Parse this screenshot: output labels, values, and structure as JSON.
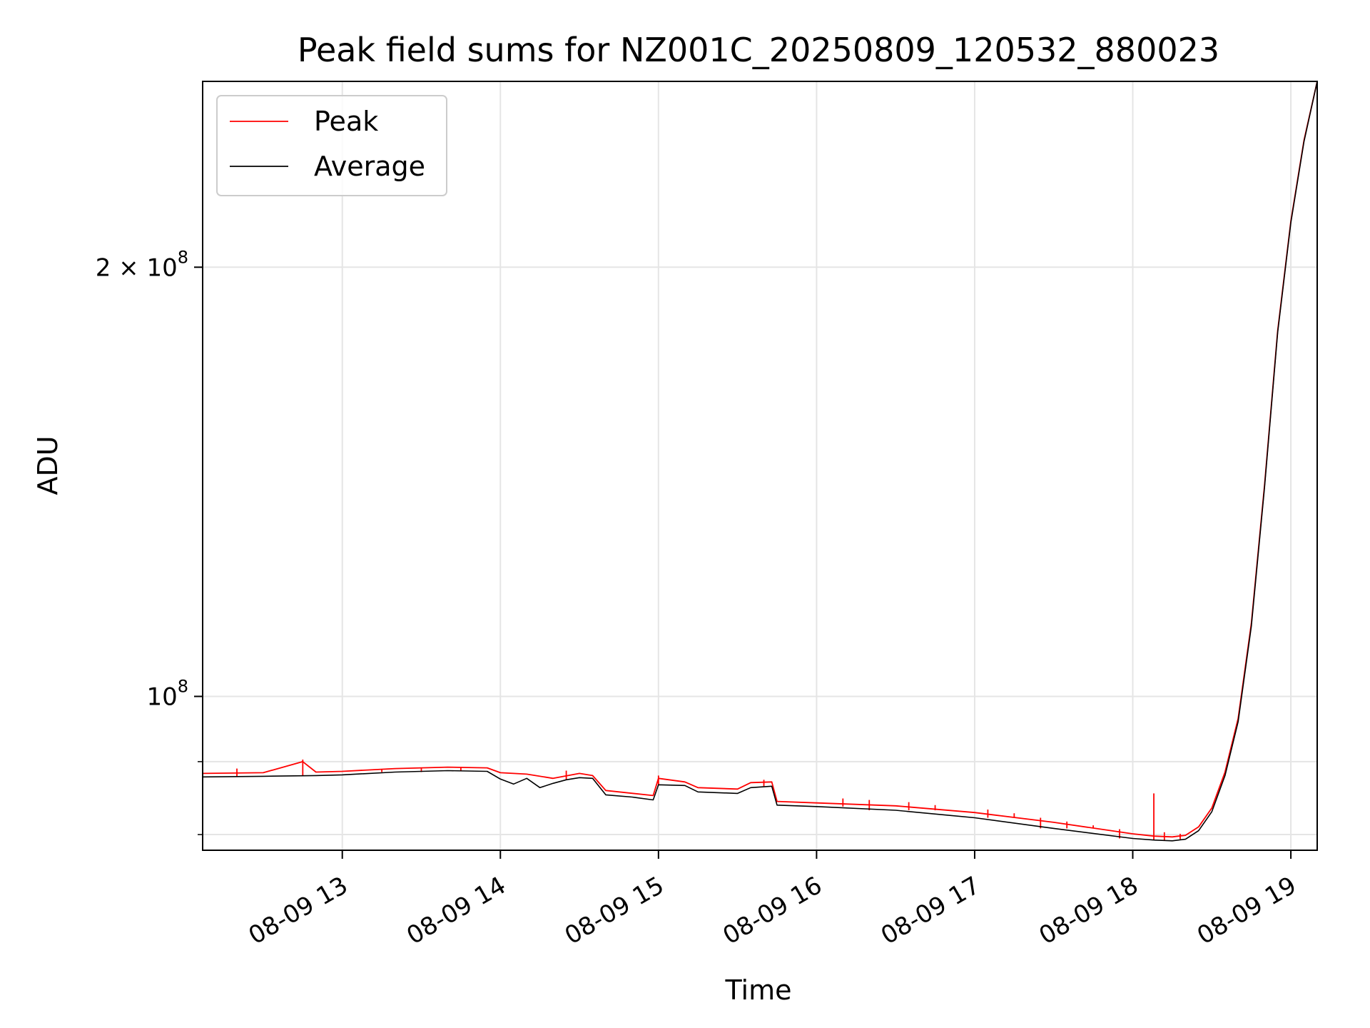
{
  "chart_data": {
    "type": "line",
    "title": "Peak field sums for NZ001C_20250809_120532_880023",
    "xlabel": "Time",
    "ylabel": "ADU",
    "x_range": [
      "08-09 12:07",
      "08-09 19:10"
    ],
    "y_range": [
      78000000,
      270000000
    ],
    "y_scale": "log",
    "grid": true,
    "legend_position": "top-left",
    "x_ticks": [
      {
        "label": "08-09 13",
        "value": "08-09 13:00"
      },
      {
        "label": "08-09 14",
        "value": "08-09 14:00"
      },
      {
        "label": "08-09 15",
        "value": "08-09 15:00"
      },
      {
        "label": "08-09 16",
        "value": "08-09 16:00"
      },
      {
        "label": "08-09 17",
        "value": "08-09 17:00"
      },
      {
        "label": "08-09 18",
        "value": "08-09 18:00"
      },
      {
        "label": "08-09 19",
        "value": "08-09 19:00"
      }
    ],
    "y_major_ticks": [
      {
        "label_base": "10",
        "label_exp": "8",
        "prefix": "",
        "value": 100000000
      },
      {
        "label_base": "10",
        "label_exp": "8",
        "prefix": "2 × ",
        "value": 200000000
      }
    ],
    "y_minor_ticks": [
      80000000,
      90000000
    ],
    "series": [
      {
        "name": "Average",
        "color": "#000000",
        "points": [
          [
            "08-09 12:07",
            87800000
          ],
          [
            "08-09 12:30",
            87900000
          ],
          [
            "08-09 12:50",
            88000000
          ],
          [
            "08-09 13:00",
            88100000
          ],
          [
            "08-09 13:20",
            88500000
          ],
          [
            "08-09 13:40",
            88700000
          ],
          [
            "08-09 13:55",
            88600000
          ],
          [
            "08-09 14:00",
            87500000
          ],
          [
            "08-09 14:05",
            86800000
          ],
          [
            "08-09 14:10",
            87600000
          ],
          [
            "08-09 14:15",
            86300000
          ],
          [
            "08-09 14:20",
            86900000
          ],
          [
            "08-09 14:25",
            87400000
          ],
          [
            "08-09 14:30",
            87700000
          ],
          [
            "08-09 14:35",
            87600000
          ],
          [
            "08-09 14:40",
            85300000
          ],
          [
            "08-09 14:50",
            85000000
          ],
          [
            "08-09 14:58",
            84600000
          ],
          [
            "08-09 15:00",
            86700000
          ],
          [
            "08-09 15:10",
            86600000
          ],
          [
            "08-09 15:15",
            85700000
          ],
          [
            "08-09 15:30",
            85500000
          ],
          [
            "08-09 15:35",
            86300000
          ],
          [
            "08-09 15:43",
            86500000
          ],
          [
            "08-09 15:45",
            83900000
          ],
          [
            "08-09 16:00",
            83700000
          ],
          [
            "08-09 16:30",
            83200000
          ],
          [
            "08-09 17:00",
            82200000
          ],
          [
            "08-09 17:30",
            80800000
          ],
          [
            "08-09 18:00",
            79500000
          ],
          [
            "08-09 18:08",
            79300000
          ],
          [
            "08-09 18:15",
            79200000
          ],
          [
            "08-09 18:20",
            79400000
          ],
          [
            "08-09 18:25",
            80500000
          ],
          [
            "08-09 18:30",
            83000000
          ],
          [
            "08-09 18:35",
            88000000
          ],
          [
            "08-09 18:40",
            96000000
          ],
          [
            "08-09 18:45",
            112000000
          ],
          [
            "08-09 18:50",
            140000000
          ],
          [
            "08-09 18:55",
            180000000
          ],
          [
            "08-09 19:00",
            215000000
          ],
          [
            "08-09 19:05",
            245000000
          ],
          [
            "08-09 19:10",
            270000000
          ]
        ]
      },
      {
        "name": "Peak",
        "color": "#ff0000",
        "points": [
          [
            "08-09 12:07",
            88300000
          ],
          [
            "08-09 12:30",
            88400000
          ],
          [
            "08-09 12:45",
            90000000
          ],
          [
            "08-09 12:50",
            88500000
          ],
          [
            "08-09 13:00",
            88600000
          ],
          [
            "08-09 13:20",
            89000000
          ],
          [
            "08-09 13:40",
            89200000
          ],
          [
            "08-09 13:55",
            89100000
          ],
          [
            "08-09 14:00",
            88400000
          ],
          [
            "08-09 14:10",
            88200000
          ],
          [
            "08-09 14:20",
            87600000
          ],
          [
            "08-09 14:30",
            88300000
          ],
          [
            "08-09 14:35",
            88000000
          ],
          [
            "08-09 14:40",
            85900000
          ],
          [
            "08-09 14:58",
            85200000
          ],
          [
            "08-09 15:00",
            87600000
          ],
          [
            "08-09 15:10",
            87100000
          ],
          [
            "08-09 15:15",
            86300000
          ],
          [
            "08-09 15:30",
            86100000
          ],
          [
            "08-09 15:35",
            87000000
          ],
          [
            "08-09 15:43",
            87100000
          ],
          [
            "08-09 15:45",
            84400000
          ],
          [
            "08-09 16:00",
            84200000
          ],
          [
            "08-09 16:30",
            83800000
          ],
          [
            "08-09 17:00",
            82900000
          ],
          [
            "08-09 17:30",
            81600000
          ],
          [
            "08-09 18:00",
            80100000
          ],
          [
            "08-09 18:08",
            79800000
          ],
          [
            "08-09 18:15",
            79700000
          ],
          [
            "08-09 18:20",
            79900000
          ],
          [
            "08-09 18:25",
            81000000
          ],
          [
            "08-09 18:30",
            83500000
          ],
          [
            "08-09 18:35",
            88500000
          ],
          [
            "08-09 18:40",
            96500000
          ],
          [
            "08-09 18:45",
            112500000
          ],
          [
            "08-09 18:50",
            140500000
          ],
          [
            "08-09 18:55",
            180500000
          ],
          [
            "08-09 19:00",
            215500000
          ],
          [
            "08-09 19:05",
            245500000
          ],
          [
            "08-09 19:10",
            270000000
          ]
        ],
        "spikes": [
          [
            "08-09 12:20",
            89000000
          ],
          [
            "08-09 12:45",
            90300000
          ],
          [
            "08-09 13:15",
            88900000
          ],
          [
            "08-09 13:30",
            89100000
          ],
          [
            "08-09 13:45",
            89200000
          ],
          [
            "08-09 14:25",
            88700000
          ],
          [
            "08-09 15:00",
            88000000
          ],
          [
            "08-09 15:40",
            87400000
          ],
          [
            "08-09 16:10",
            84800000
          ],
          [
            "08-09 16:20",
            84600000
          ],
          [
            "08-09 16:35",
            84300000
          ],
          [
            "08-09 16:45",
            83900000
          ],
          [
            "08-09 17:05",
            83300000
          ],
          [
            "08-09 17:15",
            82800000
          ],
          [
            "08-09 17:25",
            82200000
          ],
          [
            "08-09 17:35",
            81700000
          ],
          [
            "08-09 17:45",
            81200000
          ],
          [
            "08-09 17:55",
            80700000
          ],
          [
            "08-09 18:08",
            85500000
          ],
          [
            "08-09 18:12",
            80300000
          ],
          [
            "08-09 18:18",
            80100000
          ]
        ]
      }
    ],
    "legend": [
      {
        "name": "Peak",
        "color": "#ff0000"
      },
      {
        "name": "Average",
        "color": "#000000"
      }
    ]
  }
}
